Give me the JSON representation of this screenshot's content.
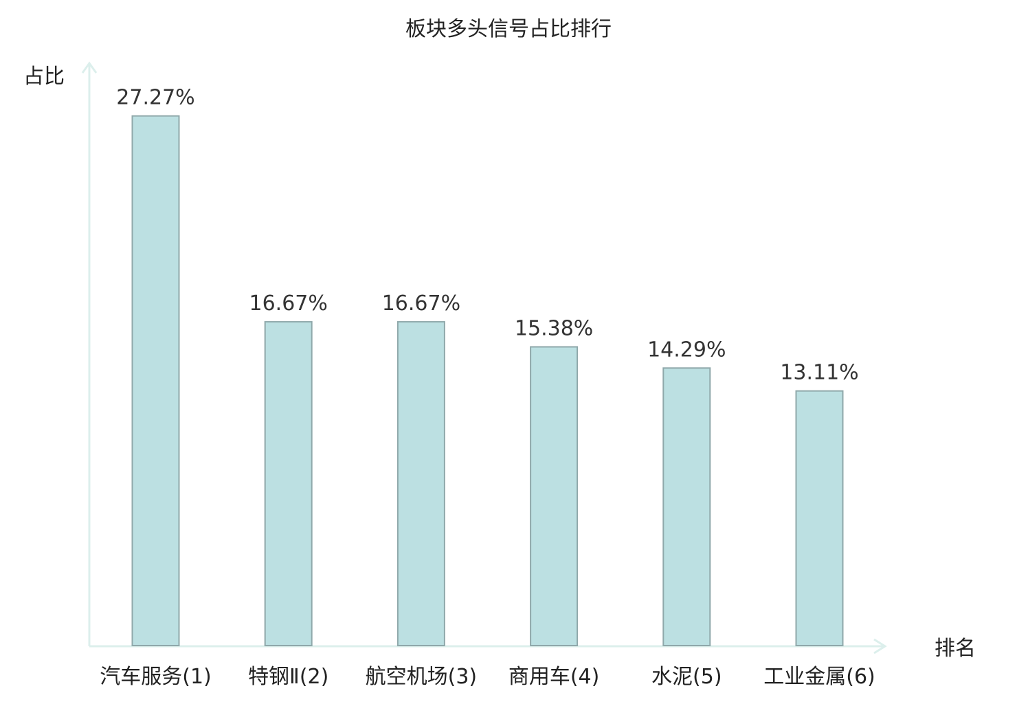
{
  "colors": {
    "bar_fill": "#bce0e2",
    "bar_stroke": "#8fa8aa",
    "axis": "#dcefec",
    "text": "#222222",
    "value_text": "#333333",
    "highlight": "#e02020"
  },
  "chart_data": {
    "type": "bar",
    "title": "板块多头信号占比排行",
    "xlabel": "排名",
    "ylabel": "占比",
    "categories": [
      "汽车服务(1)",
      "特钢Ⅱ(2)",
      "航空机场(3)",
      "商用车(4)",
      "水泥(5)",
      "工业金属(6)"
    ],
    "values": [
      27.27,
      16.67,
      16.67,
      15.38,
      14.29,
      13.11
    ],
    "value_labels": [
      "27.27%",
      "16.67%",
      "16.67%",
      "15.38%",
      "14.29%",
      "13.11%"
    ],
    "highlight_category": "工业金属(6)",
    "ylim": [
      0,
      30
    ],
    "grid": false,
    "legend": "none"
  }
}
